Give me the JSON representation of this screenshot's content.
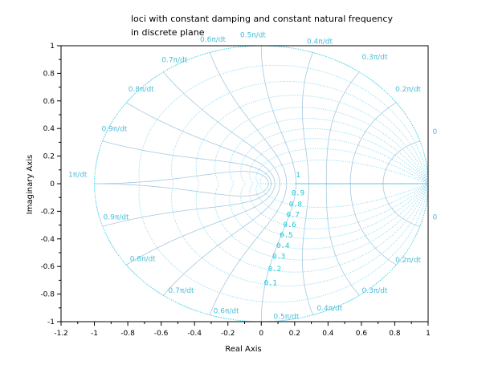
{
  "chart_data": {
    "type": "line",
    "title": [
      "loci with constant damping and constant natural frequency",
      "in discrete plane"
    ],
    "xlabel": "Real Axis",
    "ylabel": "Imaginary Axis",
    "xlim": [
      -1.2,
      1
    ],
    "ylim": [
      -1,
      1
    ],
    "xticks": [
      "-1.2",
      "-1",
      "-0.8",
      "-0.6",
      "-0.4",
      "-0.2",
      "0",
      "0.2",
      "0.4",
      "0.6",
      "0.8",
      "1"
    ],
    "yticks": [
      "-1",
      "-0.8",
      "-0.6",
      "-0.4",
      "-0.2",
      "0",
      "0.2",
      "0.4",
      "0.6",
      "0.8",
      "1"
    ],
    "grid": "off",
    "damping_values": [
      0,
      0.1,
      0.2,
      0.3,
      0.4,
      0.5,
      0.6,
      0.7,
      0.8,
      0.9,
      1
    ],
    "damping_labels": [
      "1",
      "0.9",
      "0.8",
      "0.7",
      "0.6",
      "0.5",
      "0.4",
      "0.3",
      "0.2",
      "0.1"
    ],
    "natural_frequency_values": [
      0.1,
      0.2,
      0.3,
      0.4,
      0.5,
      0.6,
      0.7,
      0.8,
      0.9,
      1.0
    ],
    "wn_labels_upper": [
      "0",
      "0.2π/dt",
      "0.3π/dt",
      "0.4π/dt",
      "0.5π/dt",
      "0.6π/dt",
      "0.7π/dt",
      "0.8π/dt",
      "0.9π/dt",
      "1π/dt"
    ],
    "wn_labels_lower": [
      "0",
      "0.2π/dt",
      "0.3π/dt",
      "0.4π/dt",
      "0.5π/dt",
      "0.6π/dt",
      "0.7π/dt",
      "0.8π/dt",
      "0.9π/dt"
    ],
    "colors": {
      "damping": "#8ad8ee",
      "frequency": "#a4c8e0",
      "unit_circle": "#3fd6e6",
      "labels_zeta": "#14c8d6",
      "labels_wn": "#4cbcd8"
    }
  }
}
